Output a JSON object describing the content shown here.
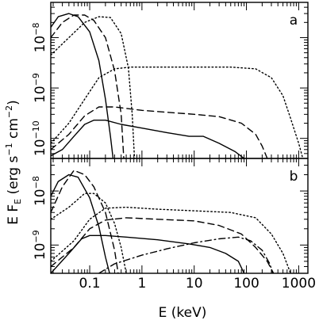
{
  "chart_data": [
    {
      "panel": "a",
      "type": "line",
      "xscale": "log",
      "yscale": "log",
      "xlim": [
        0.018,
        1500
      ],
      "ylim": [
        4e-11,
        5e-08
      ],
      "yticks": [
        {
          "value": 1e-08,
          "mantissa": "10",
          "exponent": "−8"
        },
        {
          "value": 1e-09,
          "mantissa": "10",
          "exponent": "−9"
        },
        {
          "value": 1e-10,
          "mantissa": "10",
          "exponent": "−10"
        }
      ],
      "series": [
        {
          "style": "solid",
          "points": [
            [
              0.018,
              1.6e-08
            ],
            [
              0.025,
              2.6e-08
            ],
            [
              0.04,
              3e-08
            ],
            [
              0.06,
              2.6e-08
            ],
            [
              0.1,
              1.3e-08
            ],
            [
              0.15,
              3.5e-09
            ],
            [
              0.2,
              6e-10
            ],
            [
              0.25,
              1.1e-10
            ],
            [
              0.28,
              4e-11
            ]
          ]
        },
        {
          "style": "dashed",
          "points": [
            [
              0.018,
              1e-08
            ],
            [
              0.03,
              2e-08
            ],
            [
              0.05,
              2.8e-08
            ],
            [
              0.08,
              2.8e-08
            ],
            [
              0.12,
              2.2e-08
            ],
            [
              0.2,
              1e-08
            ],
            [
              0.3,
              2.2e-09
            ],
            [
              0.4,
              3e-10
            ],
            [
              0.45,
              4e-11
            ]
          ]
        },
        {
          "style": "dotted",
          "points": [
            [
              0.018,
              4.5e-09
            ],
            [
              0.04,
              1e-08
            ],
            [
              0.08,
              2e-08
            ],
            [
              0.15,
              2.6e-08
            ],
            [
              0.25,
              2.5e-08
            ],
            [
              0.4,
              1.2e-08
            ],
            [
              0.55,
              2.5e-09
            ],
            [
              0.65,
              3e-10
            ],
            [
              0.72,
              4e-11
            ]
          ]
        },
        {
          "style": "solid",
          "points": [
            [
              0.018,
              4.5e-11
            ],
            [
              0.03,
              6e-11
            ],
            [
              0.05,
              1.1e-10
            ],
            [
              0.08,
              1.9e-10
            ],
            [
              0.12,
              2.3e-10
            ],
            [
              0.2,
              2.3e-10
            ],
            [
              0.4,
              1.9e-10
            ],
            [
              1,
              1.6e-10
            ],
            [
              3,
              1.3e-10
            ],
            [
              8,
              1.1e-10
            ],
            [
              15,
              1.1e-10
            ],
            [
              30,
              8e-11
            ],
            [
              60,
              5.5e-11
            ],
            [
              90,
              4e-11
            ]
          ]
        },
        {
          "style": "dashed",
          "points": [
            [
              0.018,
              6e-11
            ],
            [
              0.04,
              1.2e-10
            ],
            [
              0.08,
              2.8e-10
            ],
            [
              0.15,
              4.2e-10
            ],
            [
              0.3,
              4.2e-10
            ],
            [
              1,
              3.6e-10
            ],
            [
              3,
              3.3e-10
            ],
            [
              10,
              3e-10
            ],
            [
              30,
              2.7e-10
            ],
            [
              80,
              2e-10
            ],
            [
              150,
              1.2e-10
            ],
            [
              200,
              7e-11
            ],
            [
              250,
              4e-11
            ]
          ]
        },
        {
          "style": "dotted",
          "points": [
            [
              0.018,
              8e-11
            ],
            [
              0.04,
              2e-10
            ],
            [
              0.08,
              6e-10
            ],
            [
              0.15,
              1.6e-09
            ],
            [
              0.3,
              2.4e-09
            ],
            [
              0.6,
              2.6e-09
            ],
            [
              2,
              2.6e-09
            ],
            [
              10,
              2.6e-09
            ],
            [
              50,
              2.6e-09
            ],
            [
              150,
              2.4e-09
            ],
            [
              300,
              1.6e-09
            ],
            [
              500,
              7e-10
            ],
            [
              700,
              2.5e-10
            ],
            [
              1000,
              8e-11
            ],
            [
              1200,
              4e-11
            ]
          ]
        }
      ]
    },
    {
      "panel": "b",
      "type": "line",
      "xscale": "log",
      "yscale": "log",
      "xlim": [
        0.018,
        1500
      ],
      "ylim": [
        3e-10,
        4e-08
      ],
      "yticks": [
        {
          "value": 1e-08,
          "mantissa": "10",
          "exponent": "−8"
        },
        {
          "value": 1e-09,
          "mantissa": "10",
          "exponent": "−9"
        }
      ],
      "series": [
        {
          "style": "solid",
          "points": [
            [
              0.018,
              8e-09
            ],
            [
              0.025,
              1.5e-08
            ],
            [
              0.04,
              2e-08
            ],
            [
              0.06,
              1.8e-08
            ],
            [
              0.1,
              7.5e-09
            ],
            [
              0.15,
              2.2e-09
            ],
            [
              0.2,
              6e-10
            ],
            [
              0.24,
              3e-10
            ]
          ]
        },
        {
          "style": "dashed",
          "points": [
            [
              0.018,
              4e-09
            ],
            [
              0.03,
              1.2e-08
            ],
            [
              0.05,
              2.4e-08
            ],
            [
              0.08,
              2e-08
            ],
            [
              0.12,
              1.2e-08
            ],
            [
              0.2,
              4e-09
            ],
            [
              0.3,
              8e-10
            ],
            [
              0.35,
              3e-10
            ]
          ]
        },
        {
          "style": "dotted",
          "points": [
            [
              0.018,
              3e-09
            ],
            [
              0.04,
              5e-09
            ],
            [
              0.08,
              9e-09
            ],
            [
              0.12,
              9e-09
            ],
            [
              0.2,
              6e-09
            ],
            [
              0.3,
              2.5e-09
            ],
            [
              0.4,
              9e-10
            ],
            [
              0.5,
              3e-10
            ]
          ]
        },
        {
          "style": "solid",
          "points": [
            [
              0.018,
              3e-10
            ],
            [
              0.04,
              7e-10
            ],
            [
              0.07,
              1.3e-09
            ],
            [
              0.1,
              1.5e-09
            ],
            [
              0.2,
              1.5e-09
            ],
            [
              0.5,
              1.4e-09
            ],
            [
              2,
              1.25e-09
            ],
            [
              8,
              1.05e-09
            ],
            [
              20,
              9e-10
            ],
            [
              40,
              7e-10
            ],
            [
              70,
              5e-10
            ],
            [
              90,
              3e-10
            ]
          ]
        },
        {
          "style": "dashed",
          "points": [
            [
              0.018,
              4e-10
            ],
            [
              0.05,
              9e-10
            ],
            [
              0.1,
              2e-09
            ],
            [
              0.2,
              2.9e-09
            ],
            [
              0.5,
              3.2e-09
            ],
            [
              2,
              3e-09
            ],
            [
              10,
              2.8e-09
            ],
            [
              30,
              2.3e-09
            ],
            [
              80,
              1.6e-09
            ],
            [
              150,
              9e-10
            ],
            [
              250,
              5e-10
            ],
            [
              330,
              3e-10
            ]
          ]
        },
        {
          "style": "dotted",
          "points": [
            [
              0.018,
              5e-10
            ],
            [
              0.05,
              1.2e-09
            ],
            [
              0.1,
              3e-09
            ],
            [
              0.2,
              4.8e-09
            ],
            [
              0.5,
              5e-09
            ],
            [
              2,
              4.6e-09
            ],
            [
              10,
              4.3e-09
            ],
            [
              50,
              4e-09
            ],
            [
              150,
              3.2e-09
            ],
            [
              300,
              1.6e-09
            ],
            [
              500,
              7e-10
            ],
            [
              700,
              3e-10
            ]
          ]
        },
        {
          "style": "dashdot",
          "points": [
            [
              0.15,
              3e-10
            ],
            [
              0.3,
              4.5e-10
            ],
            [
              1,
              6.5e-10
            ],
            [
              3,
              8.5e-10
            ],
            [
              10,
              1.1e-09
            ],
            [
              30,
              1.3e-09
            ],
            [
              70,
              1.4e-09
            ],
            [
              120,
              1.2e-09
            ],
            [
              200,
              8e-10
            ],
            [
              280,
              4.5e-10
            ],
            [
              320,
              3e-10
            ]
          ]
        }
      ]
    }
  ],
  "xticks": [
    {
      "value": 0.1,
      "label": "0.1"
    },
    {
      "value": 1,
      "label": "1"
    },
    {
      "value": 10,
      "label": "10"
    },
    {
      "value": 100,
      "label": "100"
    },
    {
      "value": 1000,
      "label": "1000"
    }
  ],
  "xlabel": "E (keV)",
  "ylabel": {
    "prefix": "E F",
    "subscript": "E",
    "units_open": " (erg s",
    "units_exp1": "−1",
    "units_mid": " cm",
    "units_exp2": "−2",
    "units_close": ")"
  },
  "colors": {
    "line": "#000000",
    "background": "#ffffff"
  }
}
